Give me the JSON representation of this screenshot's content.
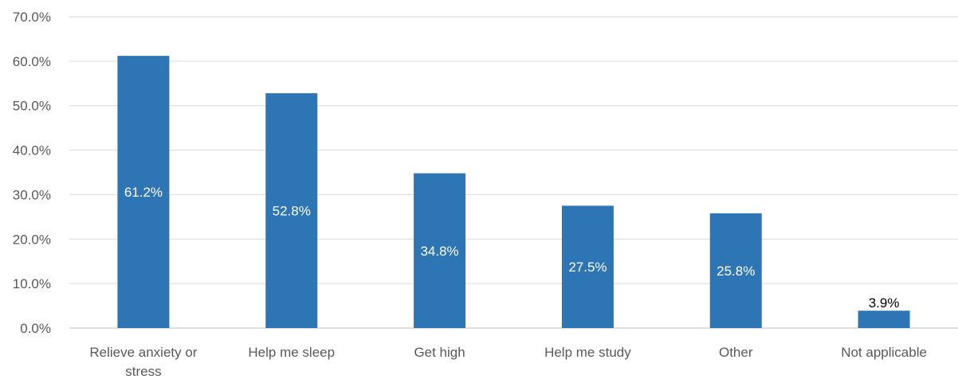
{
  "chart_data": {
    "type": "bar",
    "categories": [
      [
        "Relieve anxiety or",
        "stress"
      ],
      [
        "Help me sleep"
      ],
      [
        "Get high"
      ],
      [
        "Help me study"
      ],
      [
        "Other"
      ],
      [
        "Not applicable"
      ]
    ],
    "values": [
      61.2,
      52.8,
      34.8,
      27.5,
      25.8,
      3.9
    ],
    "data_labels": [
      "61.2%",
      "52.8%",
      "34.8%",
      "27.5%",
      "25.8%",
      "3.9%"
    ],
    "y_ticks": [
      "0.0%",
      "10.0%",
      "20.0%",
      "30.0%",
      "40.0%",
      "50.0%",
      "60.0%",
      "70.0%"
    ],
    "ylim": [
      0,
      70
    ],
    "grid": true,
    "legend": "none",
    "title": "",
    "xlabel": "",
    "ylabel": "",
    "bar_color": "#2E75B6"
  }
}
